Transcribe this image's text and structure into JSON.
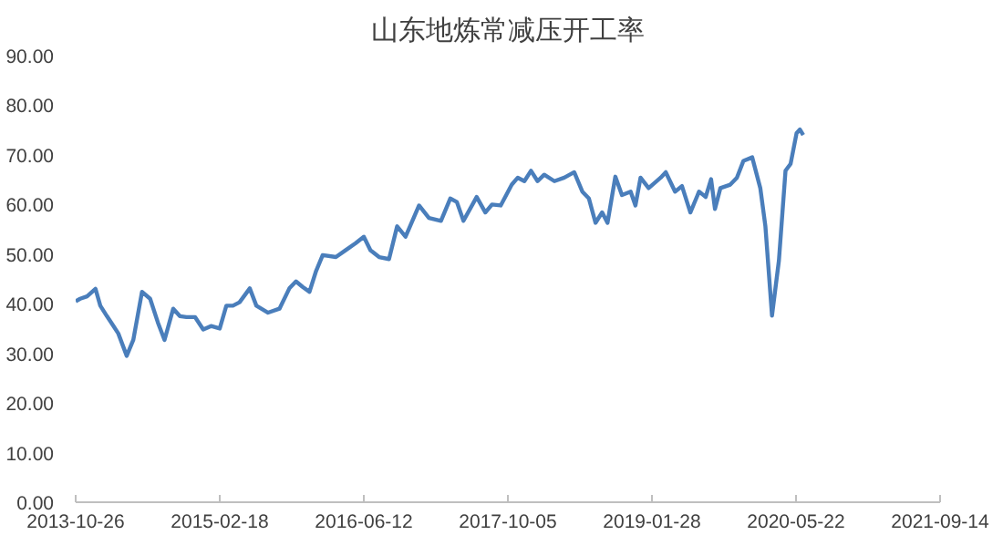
{
  "chart_data": {
    "type": "line",
    "title": "山东地炼常减压开工率",
    "x": [
      "2013-10-26",
      "2013-11-10",
      "2013-12-03",
      "2013-12-31",
      "2014-01-16",
      "2014-02-07",
      "2014-03-01",
      "2014-03-17",
      "2014-04-14",
      "2014-05-06",
      "2014-06-04",
      "2014-07-01",
      "2014-07-27",
      "2014-08-18",
      "2014-09-16",
      "2014-10-08",
      "2014-10-30",
      "2014-11-28",
      "2014-12-25",
      "2015-01-20",
      "2015-02-18",
      "2015-03-12",
      "2015-04-03",
      "2015-04-25",
      "2015-05-29",
      "2015-06-20",
      "2015-07-29",
      "2015-09-05",
      "2015-10-08",
      "2015-10-30",
      "2015-11-21",
      "2015-12-14",
      "2016-01-05",
      "2016-01-27",
      "2016-03-11",
      "2016-04-13",
      "2016-05-16",
      "2016-06-12",
      "2016-07-04",
      "2016-08-02",
      "2016-09-04",
      "2016-10-01",
      "2016-10-29",
      "2016-12-13",
      "2017-01-15",
      "2017-02-24",
      "2017-03-27",
      "2017-04-18",
      "2017-05-10",
      "2017-06-23",
      "2017-07-22",
      "2017-08-13",
      "2017-09-11",
      "2017-10-18",
      "2017-11-07",
      "2017-11-29",
      "2017-12-21",
      "2018-01-12",
      "2018-02-03",
      "2018-03-09",
      "2018-04-11",
      "2018-05-14",
      "2018-06-10",
      "2018-07-02",
      "2018-07-24",
      "2018-08-15",
      "2018-09-02",
      "2018-09-28",
      "2018-10-20",
      "2018-11-18",
      "2018-12-04",
      "2018-12-21",
      "2019-01-17",
      "2019-02-26",
      "2019-03-15",
      "2019-04-15",
      "2019-05-08",
      "2019-06-05",
      "2019-07-04",
      "2019-07-26",
      "2019-08-13",
      "2019-08-26",
      "2019-09-13",
      "2019-10-16",
      "2019-11-07",
      "2019-11-29",
      "2019-12-28",
      "2020-01-24",
      "2020-02-10",
      "2020-03-03",
      "2020-03-26",
      "2020-04-17",
      "2020-05-04",
      "2020-05-24",
      "2020-06-04",
      "2020-06-15"
    ],
    "series": [
      {
        "color": "#4a7ebb",
        "values": [
          40.5,
          41.0,
          41.5,
          43.0,
          39.6,
          37.5,
          35.5,
          34.0,
          29.5,
          32.7,
          42.4,
          41.0,
          36.2,
          32.7,
          39.0,
          37.5,
          37.3,
          37.3,
          34.8,
          35.5,
          35.0,
          39.6,
          39.6,
          40.3,
          43.1,
          39.6,
          38.2,
          39.0,
          43.1,
          44.5,
          43.4,
          42.4,
          46.6,
          49.8,
          49.4,
          50.8,
          52.2,
          53.5,
          50.8,
          49.4,
          49.0,
          55.6,
          53.5,
          59.8,
          57.3,
          56.7,
          61.2,
          60.5,
          56.7,
          61.5,
          58.4,
          60.0,
          59.8,
          64.0,
          65.4,
          64.7,
          66.8,
          64.7,
          66.0,
          64.7,
          65.4,
          66.5,
          62.6,
          61.2,
          56.3,
          58.4,
          56.3,
          65.6,
          61.9,
          62.6,
          59.8,
          65.4,
          63.3,
          65.4,
          66.5,
          62.6,
          63.7,
          58.4,
          62.6,
          61.5,
          65.1,
          59.1,
          63.3,
          64.0,
          65.4,
          68.8,
          69.5,
          63.3,
          55.6,
          37.6,
          48.7,
          66.8,
          68.2,
          74.4,
          75.1,
          74.0
        ]
      }
    ],
    "xlim": [
      "2013-10-26",
      "2021-09-14"
    ],
    "xticks": [
      {
        "value": "2013-10-26",
        "label": "2013-10-26"
      },
      {
        "value": "2015-02-18",
        "label": "2015-02-18"
      },
      {
        "value": "2016-06-12",
        "label": "2016-06-12"
      },
      {
        "value": "2017-10-05",
        "label": "2017-10-05"
      },
      {
        "value": "2019-01-28",
        "label": "2019-01-28"
      },
      {
        "value": "2020-05-22",
        "label": "2020-05-22"
      },
      {
        "value": "2021-09-14",
        "label": "2021-09-14"
      }
    ],
    "ylim": [
      0,
      90
    ],
    "yticks": [
      {
        "value": 0,
        "label": "0.00"
      },
      {
        "value": 10,
        "label": "10.00"
      },
      {
        "value": 20,
        "label": "20.00"
      },
      {
        "value": 30,
        "label": "30.00"
      },
      {
        "value": 40,
        "label": "40.00"
      },
      {
        "value": 50,
        "label": "50.00"
      },
      {
        "value": 60,
        "label": "60.00"
      },
      {
        "value": 70,
        "label": "70.00"
      },
      {
        "value": 80,
        "label": "80.00"
      },
      {
        "value": 90,
        "label": "90.00"
      }
    ],
    "grid": false,
    "line_style": "solid"
  }
}
